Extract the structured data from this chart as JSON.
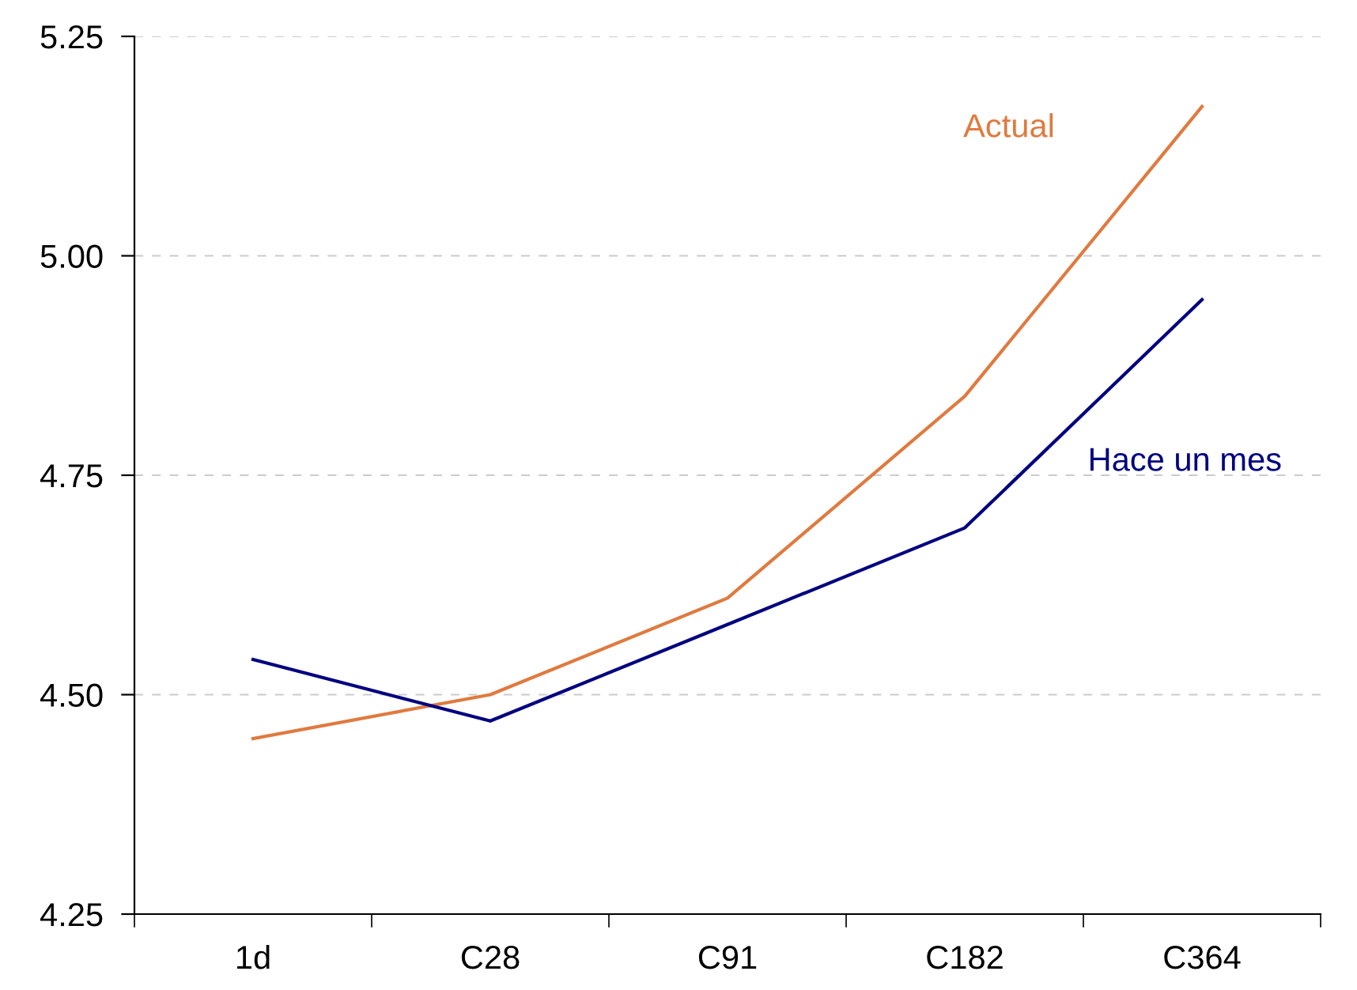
{
  "chart_data": {
    "type": "line",
    "categories": [
      "1d",
      "C28",
      "C91",
      "C182",
      "C364"
    ],
    "series": [
      {
        "name": "Actual",
        "color": "#e07a3f",
        "values": [
          4.45,
          4.5,
          4.61,
          4.84,
          5.17
        ]
      },
      {
        "name": "Hace un mes",
        "color": "#000080",
        "values": [
          4.54,
          4.47,
          4.58,
          4.69,
          4.95
        ]
      }
    ],
    "ylim": [
      4.25,
      5.25
    ],
    "yticks": [
      4.25,
      {
        "value": 4.5,
        "label": "4.50"
      },
      4.75,
      {
        "value": 5.0,
        "label": "5.00"
      },
      5.25
    ],
    "grid": "y",
    "legend": false,
    "marker": "none",
    "line_style": "solid"
  }
}
